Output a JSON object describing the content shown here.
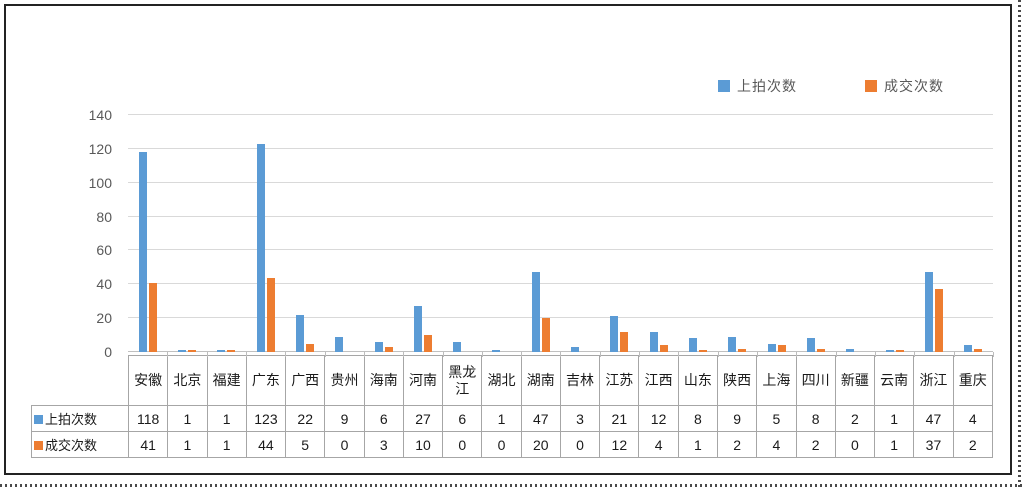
{
  "chart_data": {
    "type": "bar",
    "title": "",
    "categories": [
      "安徽",
      "北京",
      "福建",
      "广东",
      "广西",
      "贵州",
      "海南",
      "河南",
      "黑龙江",
      "湖北",
      "湖南",
      "吉林",
      "江苏",
      "江西",
      "山东",
      "陕西",
      "上海",
      "四川",
      "新疆",
      "云南",
      "浙江",
      "重庆"
    ],
    "series": [
      {
        "name": "上拍次数",
        "color": "#5B9BD5",
        "values": [
          118,
          1,
          1,
          123,
          22,
          9,
          6,
          27,
          6,
          1,
          47,
          3,
          21,
          12,
          8,
          9,
          5,
          8,
          2,
          1,
          47,
          4
        ]
      },
      {
        "name": "成交次数",
        "color": "#ED7D31",
        "values": [
          41,
          1,
          1,
          44,
          5,
          0,
          3,
          10,
          0,
          0,
          20,
          0,
          12,
          4,
          1,
          2,
          4,
          2,
          0,
          1,
          37,
          2
        ]
      }
    ],
    "xlabel": "",
    "ylabel": "",
    "ylim": [
      0,
      140
    ],
    "yticks": [
      0,
      20,
      40,
      60,
      80,
      100,
      120,
      140
    ],
    "grid": true,
    "legend_position": "top-right",
    "data_table_shown": true
  },
  "legend": {
    "items": [
      {
        "label": "上拍次数",
        "color": "#5B9BD5"
      },
      {
        "label": "成交次数",
        "color": "#ED7D31"
      }
    ]
  },
  "colors": {
    "series1": "#5B9BD5",
    "series2": "#ED7D31",
    "gridline": "#D9D9D9",
    "axis_text": "#595959",
    "table_border": "#A6A6A6",
    "table_text": "#1A1A1A",
    "frame_border": "#232323"
  }
}
